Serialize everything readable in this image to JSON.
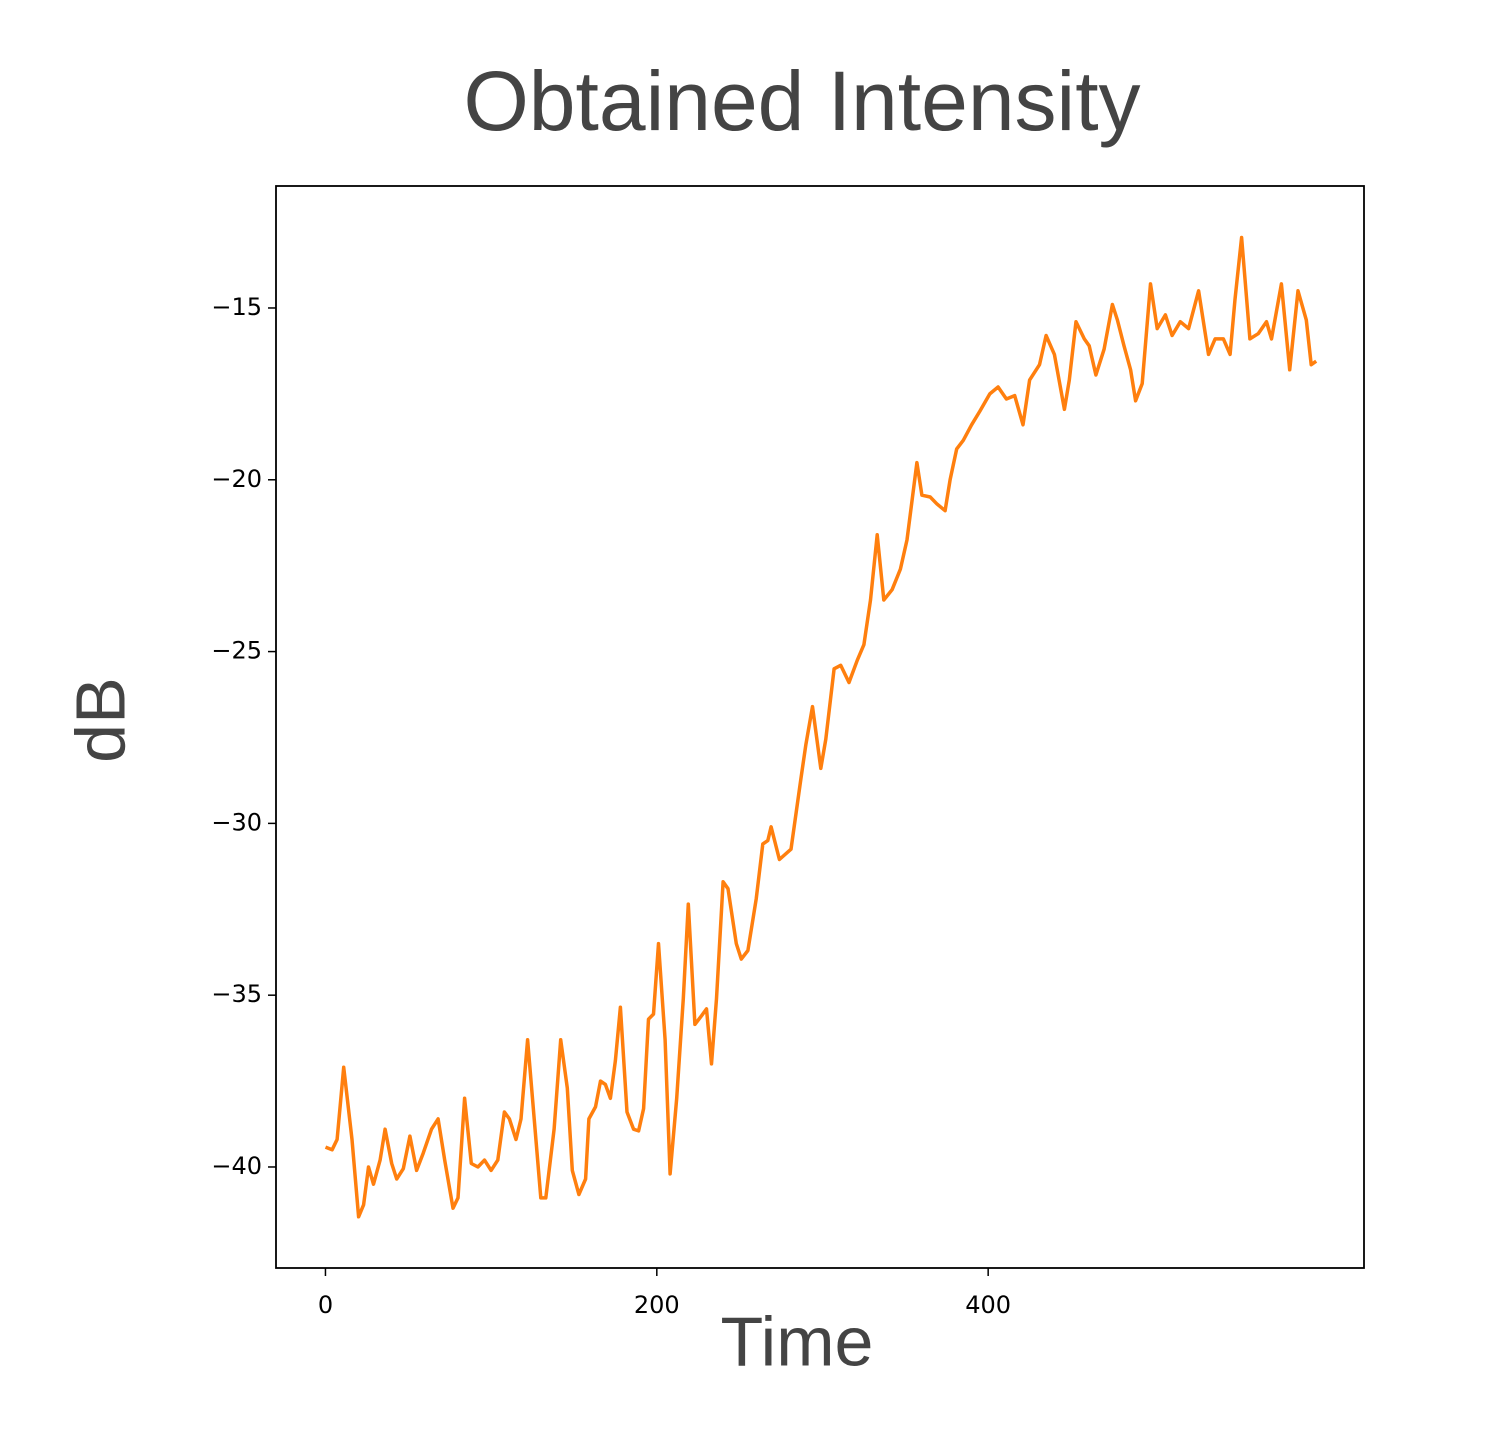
{
  "chart_data": {
    "type": "line",
    "title": "Obtained Intensity",
    "x_label": "Time",
    "y_label": "dB",
    "series": [
      {
        "name": "Intensity",
        "color": "#ff7f0e",
        "x": [
          0,
          4,
          7,
          11,
          16,
          20,
          23,
          26,
          29,
          33,
          36,
          40,
          43,
          47,
          51,
          55,
          59,
          64,
          68,
          72,
          77,
          80,
          84,
          88,
          92,
          96,
          100,
          104,
          108,
          111,
          115,
          118,
          122,
          126,
          130,
          133,
          138,
          142,
          146,
          149,
          153,
          157,
          159,
          163,
          166,
          169,
          172,
          175,
          178,
          182,
          186,
          189,
          192,
          195,
          198,
          201,
          205,
          208,
          212,
          216,
          219,
          223,
          227,
          230,
          233,
          236,
          240,
          243,
          248,
          251,
          255,
          260,
          264,
          267,
          269,
          274,
          281,
          287,
          290,
          294,
          299,
          302,
          307,
          311,
          316,
          321,
          325,
          329,
          333,
          337,
          342,
          347,
          351,
          357,
          360,
          365,
          369,
          374,
          377,
          381,
          385,
          390,
          395,
          401,
          406,
          411,
          416,
          421,
          425,
          431,
          435,
          440,
          446,
          449,
          453,
          458,
          461,
          465,
          470,
          475,
          478,
          482,
          486,
          489,
          493,
          498,
          502,
          507,
          511,
          516,
          521,
          527,
          533,
          537,
          542,
          546,
          549,
          553,
          558,
          563,
          568,
          571,
          577,
          582,
          587,
          592,
          595,
          598
        ],
        "values": [
          -39.42,
          -39.5,
          -39.2,
          -37.1,
          -39.2,
          -41.45,
          -41.1,
          -40.0,
          -40.5,
          -39.8,
          -38.9,
          -39.9,
          -40.35,
          -40.05,
          -39.1,
          -40.1,
          -39.6,
          -38.9,
          -38.6,
          -39.8,
          -41.2,
          -40.9,
          -38.0,
          -39.9,
          -40.0,
          -39.8,
          -40.1,
          -39.8,
          -38.4,
          -38.6,
          -39.2,
          -38.6,
          -36.3,
          -38.6,
          -40.9,
          -40.9,
          -38.9,
          -36.3,
          -37.7,
          -40.1,
          -40.8,
          -40.35,
          -38.6,
          -38.25,
          -37.5,
          -37.6,
          -38.0,
          -36.9,
          -35.35,
          -38.4,
          -38.9,
          -38.95,
          -38.3,
          -35.7,
          -35.55,
          -33.5,
          -36.3,
          -40.2,
          -38.0,
          -35.1,
          -32.35,
          -35.85,
          -35.6,
          -35.4,
          -37.0,
          -35.1,
          -31.7,
          -31.9,
          -33.5,
          -33.95,
          -33.7,
          -32.2,
          -30.6,
          -30.5,
          -30.1,
          -31.05,
          -30.75,
          -28.7,
          -27.7,
          -26.6,
          -28.4,
          -27.55,
          -25.5,
          -25.4,
          -25.9,
          -25.25,
          -24.8,
          -23.5,
          -21.6,
          -23.5,
          -23.2,
          -22.6,
          -21.75,
          -19.5,
          -20.45,
          -20.5,
          -20.7,
          -20.9,
          -20.0,
          -19.1,
          -18.85,
          -18.4,
          -18.0,
          -17.5,
          -17.3,
          -17.65,
          -17.55,
          -18.4,
          -17.1,
          -16.65,
          -15.8,
          -16.35,
          -17.95,
          -17.1,
          -15.4,
          -15.9,
          -16.1,
          -16.95,
          -16.2,
          -14.9,
          -15.35,
          -16.1,
          -16.8,
          -17.7,
          -17.2,
          -14.3,
          -15.6,
          -15.2,
          -15.8,
          -15.4,
          -15.6,
          -14.5,
          -16.35,
          -15.9,
          -15.9,
          -16.35,
          -14.75,
          -12.95,
          -15.9,
          -15.75,
          -15.4,
          -15.9,
          -14.3,
          -16.8,
          -14.5,
          -15.35,
          -16.65,
          -16.55
        ]
      }
    ],
    "xlim": [
      -29.85,
      626.85
    ],
    "xticks": [
      0,
      200,
      400
    ],
    "ylim": [
      -42.94,
      -11.45
    ],
    "yticks": [
      -40,
      -35,
      -30,
      -25,
      -20,
      -15
    ],
    "grid": false,
    "legend": false
  }
}
